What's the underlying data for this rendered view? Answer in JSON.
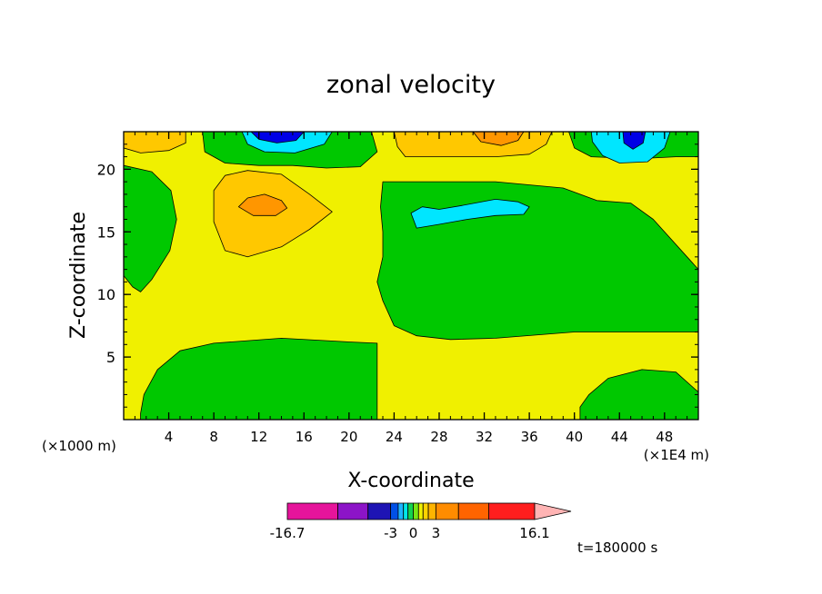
{
  "chart_data": {
    "type": "contour",
    "title": "zonal velocity",
    "xlabel": "X-coordinate",
    "ylabel": "Z-coordinate",
    "x_scale_label": "(×1E4 m)",
    "y_scale_label": "(×1000 m)",
    "xlim": [
      0,
      51
    ],
    "ylim": [
      0,
      23
    ],
    "x_ticks": [
      4,
      8,
      12,
      16,
      20,
      24,
      28,
      32,
      36,
      40,
      44,
      48
    ],
    "y_ticks": [
      5,
      10,
      15,
      20
    ],
    "time_label": "t=180000 s",
    "colorbar": {
      "tick_labels": [
        {
          "value": -16.7,
          "text": "-16.7"
        },
        {
          "value": -3,
          "text": "-3"
        },
        {
          "value": 0,
          "text": "0"
        },
        {
          "value": 3,
          "text": "3"
        },
        {
          "value": 16.1,
          "text": "16.1"
        }
      ],
      "colors": [
        "#e6149b",
        "#8c14c8",
        "#1e14b4",
        "#0050e6",
        "#1eb4ff",
        "#00e6e6",
        "#14d250",
        "#78e614",
        "#f0f000",
        "#ffd200",
        "#ffb400",
        "#ff8c00",
        "#ff6400",
        "#ff1e1e",
        "#ff7878",
        "#ffb4b4"
      ]
    },
    "regions": [
      {
        "fill": "#f0f000",
        "points": [
          [
            0,
            0
          ],
          [
            51,
            0
          ],
          [
            51,
            23
          ],
          [
            0,
            23
          ]
        ]
      },
      {
        "fill": "#00c800",
        "points": [
          [
            1.5,
            0
          ],
          [
            22.5,
            0
          ],
          [
            22.5,
            6.1
          ],
          [
            20,
            6.2
          ],
          [
            14,
            6.5
          ],
          [
            8,
            6.1
          ],
          [
            5,
            5.5
          ],
          [
            3,
            4
          ],
          [
            1.8,
            2
          ],
          [
            1.5,
            0.5
          ]
        ]
      },
      {
        "fill": "#00c800",
        "points": [
          [
            0,
            20.3
          ],
          [
            2.5,
            19.8
          ],
          [
            4.2,
            18.3
          ],
          [
            4.7,
            16
          ],
          [
            4.1,
            13.5
          ],
          [
            2.5,
            11.2
          ],
          [
            1.5,
            10.2
          ],
          [
            0.8,
            10.6
          ],
          [
            0,
            11.5
          ]
        ]
      },
      {
        "fill": "#00c800",
        "points": [
          [
            23,
            19
          ],
          [
            33,
            19
          ],
          [
            39,
            18.5
          ],
          [
            42,
            17.5
          ],
          [
            45,
            17.3
          ],
          [
            47,
            16
          ],
          [
            50,
            13
          ],
          [
            51,
            12
          ],
          [
            51,
            7
          ],
          [
            40,
            7
          ],
          [
            33,
            6.5
          ],
          [
            29,
            6.4
          ],
          [
            26,
            6.7
          ],
          [
            24,
            7.5
          ],
          [
            23,
            9.5
          ],
          [
            22.5,
            11
          ],
          [
            23,
            13
          ],
          [
            23,
            15
          ],
          [
            22.8,
            17
          ]
        ]
      },
      {
        "fill": "#00c800",
        "points": [
          [
            40.5,
            0
          ],
          [
            51,
            0
          ],
          [
            51,
            2.2
          ],
          [
            49,
            3.8
          ],
          [
            46,
            4
          ],
          [
            43,
            3.3
          ],
          [
            41.3,
            2
          ],
          [
            40.5,
            1
          ]
        ]
      },
      {
        "fill": "#00c800",
        "points": [
          [
            7,
            23
          ],
          [
            22,
            23
          ],
          [
            22.5,
            21.4
          ],
          [
            21,
            20.2
          ],
          [
            18,
            20.1
          ],
          [
            15,
            20.3
          ],
          [
            12,
            20.3
          ],
          [
            9,
            20.5
          ],
          [
            7.2,
            21.4
          ]
        ]
      },
      {
        "fill": "#00c800",
        "points": [
          [
            39.5,
            23
          ],
          [
            51,
            23
          ],
          [
            51,
            21
          ],
          [
            49,
            21
          ],
          [
            47,
            20.9
          ],
          [
            44,
            20.9
          ],
          [
            41.5,
            21
          ],
          [
            40,
            21.7
          ]
        ]
      },
      {
        "fill": "#00e6ff",
        "points": [
          [
            26,
            15.3
          ],
          [
            28,
            15.6
          ],
          [
            30.5,
            16
          ],
          [
            33,
            16.3
          ],
          [
            35.5,
            16.4
          ],
          [
            36,
            17
          ],
          [
            35,
            17.4
          ],
          [
            33,
            17.6
          ],
          [
            30,
            17.1
          ],
          [
            28,
            16.8
          ],
          [
            26.5,
            17
          ],
          [
            25.5,
            16.5
          ]
        ]
      },
      {
        "fill": "#00e6ff",
        "points": [
          [
            41.5,
            23
          ],
          [
            48.5,
            23
          ],
          [
            48,
            21.7
          ],
          [
            46.5,
            20.6
          ],
          [
            44,
            20.5
          ],
          [
            42.5,
            21.1
          ],
          [
            41.6,
            22.2
          ]
        ]
      },
      {
        "fill": "#00e6ff",
        "points": [
          [
            10.5,
            23
          ],
          [
            18.5,
            23
          ],
          [
            17.8,
            22
          ],
          [
            15.2,
            21.3
          ],
          [
            12.5,
            21.4
          ],
          [
            11,
            22
          ]
        ]
      },
      {
        "fill": "#0000e6",
        "points": [
          [
            44.3,
            23
          ],
          [
            46.3,
            23
          ],
          [
            46.1,
            22.1
          ],
          [
            45.2,
            21.6
          ],
          [
            44.4,
            22.1
          ]
        ]
      },
      {
        "fill": "#0000e6",
        "points": [
          [
            11.3,
            23
          ],
          [
            16,
            23
          ],
          [
            15.3,
            22.3
          ],
          [
            13.6,
            22.1
          ],
          [
            12,
            22.4
          ]
        ]
      },
      {
        "fill": "#ffc800",
        "points": [
          [
            0,
            23
          ],
          [
            5.5,
            23
          ],
          [
            5.5,
            22.1
          ],
          [
            4,
            21.5
          ],
          [
            1.5,
            21.3
          ],
          [
            0,
            21.7
          ]
        ]
      },
      {
        "fill": "#ffc800",
        "points": [
          [
            24,
            23
          ],
          [
            38,
            23
          ],
          [
            37.5,
            22
          ],
          [
            36,
            21.2
          ],
          [
            33,
            21
          ],
          [
            28,
            21
          ],
          [
            25,
            21
          ],
          [
            24.3,
            21.8
          ]
        ]
      },
      {
        "fill": "#ffc800",
        "points": [
          [
            9,
            19.5
          ],
          [
            11,
            19.9
          ],
          [
            14,
            19.6
          ],
          [
            16.5,
            18
          ],
          [
            18.5,
            16.6
          ],
          [
            16.5,
            15.2
          ],
          [
            14,
            13.8
          ],
          [
            11,
            13
          ],
          [
            9,
            13.5
          ],
          [
            8,
            15.8
          ],
          [
            8,
            18.3
          ]
        ]
      },
      {
        "fill": "#ff9600",
        "points": [
          [
            10.2,
            17
          ],
          [
            11,
            17.7
          ],
          [
            12.5,
            18
          ],
          [
            14,
            17.5
          ],
          [
            14.5,
            16.9
          ],
          [
            13.5,
            16.3
          ],
          [
            11.5,
            16.3
          ]
        ]
      },
      {
        "fill": "#ff9600",
        "points": [
          [
            31,
            23
          ],
          [
            35.5,
            23
          ],
          [
            35,
            22.3
          ],
          [
            33.5,
            21.9
          ],
          [
            31.7,
            22.2
          ]
        ]
      }
    ]
  }
}
